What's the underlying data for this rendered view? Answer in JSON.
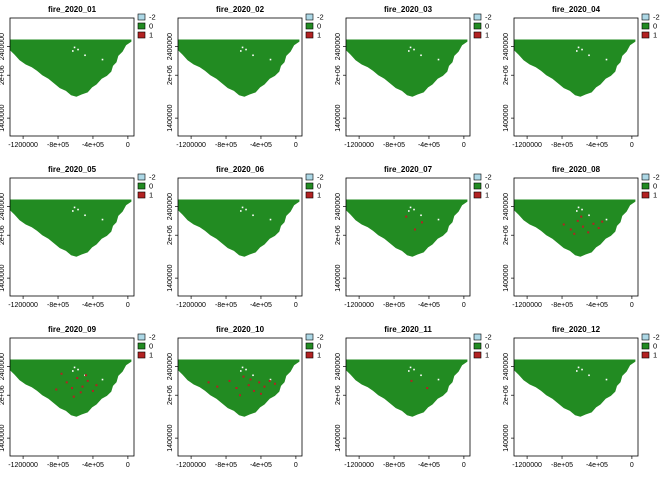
{
  "chart_data": {
    "type": "raster-map-grid",
    "layout": {
      "rows": 3,
      "cols": 4
    },
    "x_range": [
      -1350000,
      70000
    ],
    "y_range": [
      1150000,
      2800000
    ],
    "x_ticks": [
      {
        "value": -1200000,
        "label": "-1200000"
      },
      {
        "value": -800000,
        "label": "-8e+05"
      },
      {
        "value": -400000,
        "label": "-4e+05"
      },
      {
        "value": 0,
        "label": "0"
      }
    ],
    "y_ticks": [
      {
        "value": 1400000,
        "label": "1400000"
      },
      {
        "value": 2000000,
        "label": "2e+06"
      },
      {
        "value": 2400000,
        "label": "2400000"
      }
    ],
    "legend": {
      "placement": "right",
      "entries": [
        {
          "label": "-2",
          "color": "#add8e6"
        },
        {
          "label": "0",
          "color": "#228b22"
        },
        {
          "label": "1",
          "color": "#b22222"
        }
      ]
    },
    "panels": [
      {
        "title": "fire_2020_01",
        "fires": []
      },
      {
        "title": "fire_2020_02",
        "fires": []
      },
      {
        "title": "fire_2020_03",
        "fires": []
      },
      {
        "title": "fire_2020_04",
        "fires": []
      },
      {
        "title": "fire_2020_05",
        "fires": []
      },
      {
        "title": "fire_2020_06",
        "fires": []
      },
      {
        "title": "fire_2020_07",
        "fires": [
          [
            -660000,
            2260000
          ],
          [
            -480000,
            2180000
          ],
          [
            -560000,
            2080000
          ]
        ]
      },
      {
        "title": "fire_2020_08",
        "fires": [
          [
            -780000,
            2150000
          ],
          [
            -700000,
            2080000
          ],
          [
            -620000,
            2200000
          ],
          [
            -560000,
            2120000
          ],
          [
            -500000,
            2040000
          ],
          [
            -440000,
            2160000
          ],
          [
            -380000,
            2100000
          ],
          [
            -660000,
            2020000
          ],
          [
            -580000,
            2260000
          ],
          [
            -340000,
            2190000
          ]
        ]
      },
      {
        "title": "fire_2020_09",
        "fires": [
          [
            -760000,
            2300000
          ],
          [
            -700000,
            2180000
          ],
          [
            -640000,
            2100000
          ],
          [
            -580000,
            2240000
          ],
          [
            -520000,
            2120000
          ],
          [
            -460000,
            2200000
          ],
          [
            -400000,
            2060000
          ],
          [
            -620000,
            1980000
          ],
          [
            -540000,
            2040000
          ],
          [
            -480000,
            2280000
          ],
          [
            -820000,
            2080000
          ],
          [
            -360000,
            2140000
          ]
        ]
      },
      {
        "title": "fire_2020_10",
        "fires": [
          [
            -1000000,
            2180000
          ],
          [
            -900000,
            2120000
          ],
          [
            -760000,
            2200000
          ],
          [
            -680000,
            2100000
          ],
          [
            -600000,
            2260000
          ],
          [
            -540000,
            2140000
          ],
          [
            -480000,
            2060000
          ],
          [
            -420000,
            2180000
          ],
          [
            -360000,
            2120000
          ],
          [
            -300000,
            2200000
          ],
          [
            -640000,
            2000000
          ],
          [
            -520000,
            2220000
          ],
          [
            -400000,
            2020000
          ],
          [
            -240000,
            2160000
          ]
        ]
      },
      {
        "title": "fire_2020_11",
        "fires": [
          [
            -600000,
            2200000
          ],
          [
            -420000,
            2100000
          ]
        ]
      },
      {
        "title": "fire_2020_12",
        "fires": []
      }
    ]
  }
}
